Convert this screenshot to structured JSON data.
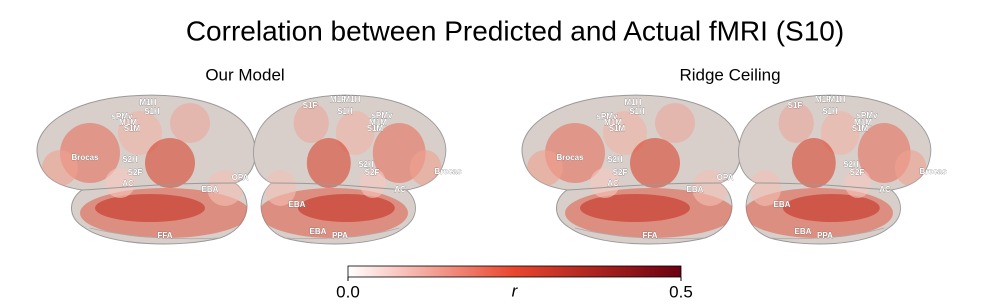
{
  "title": "Correlation between Predicted and Actual fMRI (S10)",
  "panels": [
    {
      "title": "Our Model",
      "labels": [
        "Brocas",
        "S2H",
        "S2F",
        "AC",
        "EBA",
        "sPMv",
        "M1M",
        "S1M",
        "M1H",
        "S1H",
        "FFA",
        "OPA",
        "S1F",
        "M1F",
        "M1H",
        "S1H",
        "sPMv",
        "M1M",
        "S1M",
        "S2H",
        "S2F",
        "AC",
        "EBA",
        "Brocas",
        "EBA",
        "PPA"
      ]
    },
    {
      "title": "Ridge Ceiling",
      "labels": [
        "Brocas",
        "S2H",
        "S2F",
        "AC",
        "EBA",
        "sPMv",
        "M1M",
        "S1M",
        "M1H",
        "S1H",
        "FFA",
        "OPA",
        "S1F",
        "M1F",
        "M1H",
        "S1H",
        "sPMv",
        "M1M",
        "S1M",
        "S2H",
        "S2F",
        "AC",
        "EBA",
        "Brocas",
        "EBA",
        "PPA"
      ]
    }
  ],
  "colorbar": {
    "label": "r",
    "lim": [
      0,
      0.5
    ],
    "ticks": [
      {
        "value": 0,
        "label": "0.0"
      },
      {
        "value": 0.5,
        "label": "0.5"
      }
    ],
    "colors": [
      "#ffffff",
      "#e8452e",
      "#6b0010"
    ]
  }
}
